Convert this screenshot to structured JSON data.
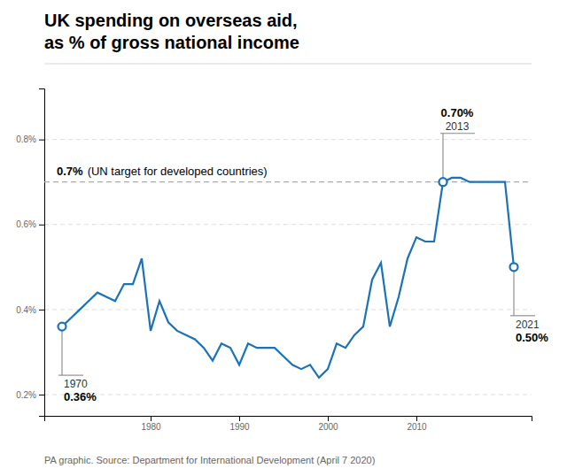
{
  "chart_data": {
    "type": "line",
    "title": "UK spending on overseas aid,\nas % of gross national income",
    "source": "PA graphic. Source: Department for International Development (April 7 2020)",
    "x": [
      1970,
      1971,
      1972,
      1973,
      1974,
      1975,
      1976,
      1977,
      1978,
      1979,
      1980,
      1981,
      1982,
      1983,
      1984,
      1985,
      1986,
      1987,
      1988,
      1989,
      1990,
      1991,
      1992,
      1993,
      1994,
      1995,
      1996,
      1997,
      1998,
      1999,
      2000,
      2001,
      2002,
      2003,
      2004,
      2005,
      2006,
      2007,
      2008,
      2009,
      2010,
      2011,
      2012,
      2013,
      2014,
      2015,
      2016,
      2017,
      2018,
      2019,
      2020,
      2021
    ],
    "values": [
      0.36,
      0.38,
      0.4,
      0.42,
      0.44,
      0.43,
      0.42,
      0.46,
      0.46,
      0.52,
      0.35,
      0.42,
      0.37,
      0.35,
      0.34,
      0.33,
      0.31,
      0.28,
      0.32,
      0.31,
      0.27,
      0.32,
      0.31,
      0.31,
      0.31,
      0.29,
      0.27,
      0.26,
      0.27,
      0.24,
      0.26,
      0.32,
      0.31,
      0.34,
      0.36,
      0.47,
      0.51,
      0.36,
      0.43,
      0.52,
      0.57,
      0.56,
      0.56,
      0.7,
      0.71,
      0.71,
      0.7,
      0.7,
      0.7,
      0.7,
      0.7,
      0.5
    ],
    "color": "#1a72b8",
    "xlim": [
      1968,
      2023
    ],
    "ylim": [
      0.15,
      0.92
    ],
    "xticks": [
      1980,
      1990,
      2000,
      2010
    ],
    "yticks": [
      {
        "value": 0.2,
        "label": "0.2%"
      },
      {
        "value": 0.4,
        "label": "0.4%"
      },
      {
        "value": 0.6,
        "label": "0.6%"
      },
      {
        "value": 0.8,
        "label": "0.8%"
      }
    ],
    "grid": true,
    "reference_line": {
      "value": 0.7,
      "label": "0.7%",
      "text": "(UN target for developed countries)"
    },
    "highlights": [
      {
        "x": 1970,
        "value": 0.36,
        "x_label": "1970",
        "value_label": "0.36%"
      },
      {
        "x": 2013,
        "value": 0.7,
        "x_label": "2013",
        "value_label": "0.70%"
      },
      {
        "x": 2021,
        "value": 0.5,
        "x_label": "2021",
        "value_label": "0.50%"
      }
    ]
  }
}
